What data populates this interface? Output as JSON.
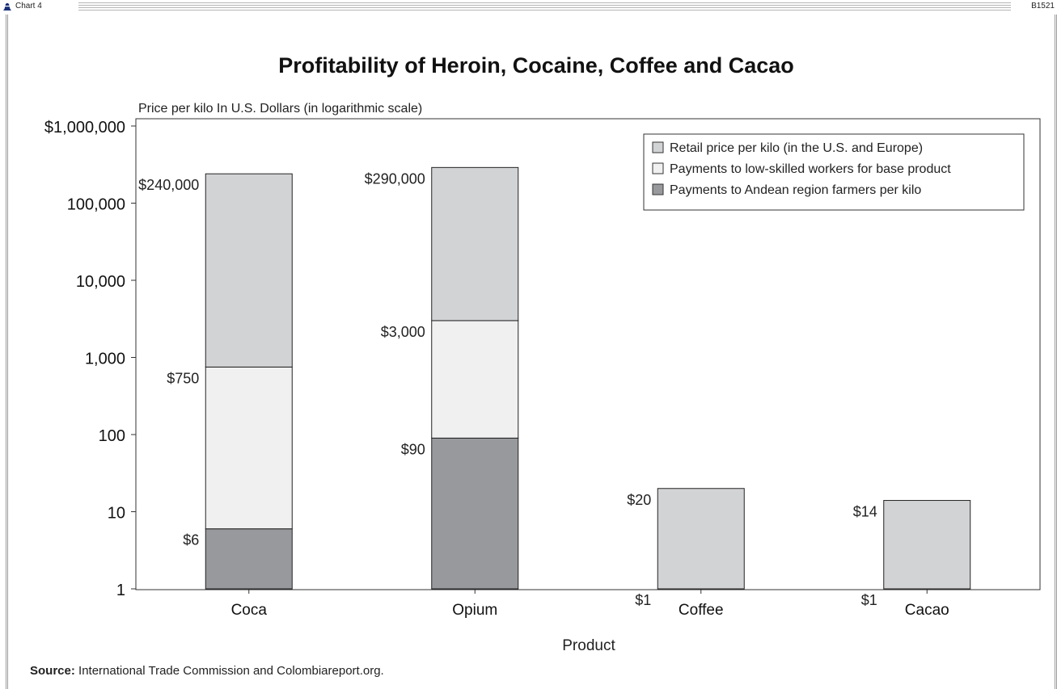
{
  "header": {
    "chart_tag": "Chart 4",
    "code": "B1521"
  },
  "source": {
    "label": "Source:",
    "text": " International Trade Commission and Colombiareport.org."
  },
  "colors": {
    "retail": "#d2d3d5",
    "workers": "#f0f0f1",
    "farmers": "#98999c",
    "logo": "#1a2f78"
  },
  "chart_data": {
    "type": "bar",
    "stacked": true,
    "title": "Profitability of Heroin, Cocaine, Coffee and Cacao",
    "ylabel": "Price per kilo In U.S. Dollars (in logarithmic scale)",
    "xlabel": "Product",
    "yscale": "log",
    "ylim": [
      1,
      1000000
    ],
    "yticks": [
      {
        "value": 1,
        "label": "1"
      },
      {
        "value": 10,
        "label": "10"
      },
      {
        "value": 100,
        "label": "100"
      },
      {
        "value": 1000,
        "label": "1,000"
      },
      {
        "value": 10000,
        "label": "10,000"
      },
      {
        "value": 100000,
        "label": "100,000"
      },
      {
        "value": 1000000,
        "label": "$1,000,000"
      }
    ],
    "categories": [
      "Coca",
      "Opium",
      "Coffee",
      "Cacao"
    ],
    "legend_position": "top-right",
    "legend": [
      {
        "key": "retail",
        "label": "Retail price per kilo (in the U.S. and Europe)"
      },
      {
        "key": "workers",
        "label": "Payments to low-skilled workers for base product"
      },
      {
        "key": "farmers",
        "label": "Payments to Andean region farmers per kilo"
      }
    ],
    "series": [
      {
        "key": "farmers",
        "values": [
          6,
          90,
          1,
          1
        ],
        "labels": [
          "$6",
          "$90",
          "$1",
          "$1"
        ]
      },
      {
        "key": "workers",
        "values": [
          750,
          3000,
          null,
          null
        ],
        "labels": [
          "$750",
          "$3,000",
          "",
          ""
        ]
      },
      {
        "key": "retail",
        "values": [
          240000,
          290000,
          20,
          14
        ],
        "labels": [
          "$240,000",
          "$290,000",
          "$20",
          "$14"
        ]
      }
    ]
  }
}
